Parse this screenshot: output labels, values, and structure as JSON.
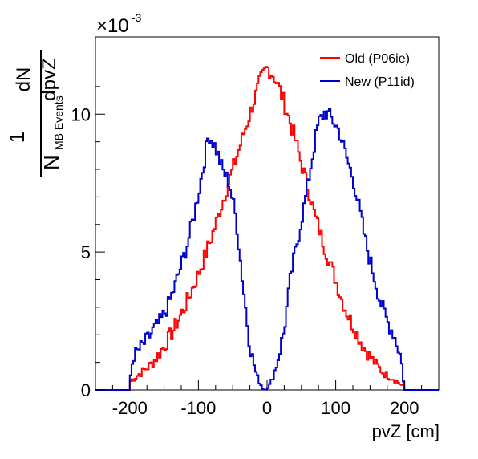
{
  "chart_data": {
    "type": "line",
    "xlabel": "pvZ [cm]",
    "ylabel": {
      "fraction_one": "1",
      "n_main": "N",
      "n_subscript": "MB Events",
      "d_numerator": "dN",
      "d_denominator": "dpvZ"
    },
    "y_multiplier_label": {
      "base": "×10",
      "exponent": "-3"
    },
    "xlim": [
      -250,
      250
    ],
    "ylim": [
      0,
      0.0128
    ],
    "x_ticks": [
      {
        "value": -200,
        "label": "-200"
      },
      {
        "value": -100,
        "label": "-100"
      },
      {
        "value": 0,
        "label": "0"
      },
      {
        "value": 100,
        "label": "100"
      },
      {
        "value": 200,
        "label": "200"
      }
    ],
    "y_ticks": [
      {
        "value": 0,
        "label": "0"
      },
      {
        "value": 0.005,
        "label": "5"
      },
      {
        "value": 0.01,
        "label": "10"
      }
    ],
    "legend_position": "top-right",
    "grid": false,
    "series": [
      {
        "name": "Old (P06ie)",
        "color": "#ff0000",
        "points": [
          [
            -200,
            0.0003
          ],
          [
            -185,
            0.0006
          ],
          [
            -170,
            0.0009
          ],
          [
            -160,
            0.0012
          ],
          [
            -150,
            0.0016
          ],
          [
            -140,
            0.002
          ],
          [
            -130,
            0.0025
          ],
          [
            -120,
            0.003
          ],
          [
            -110,
            0.0036
          ],
          [
            -100,
            0.0042
          ],
          [
            -90,
            0.0049
          ],
          [
            -80,
            0.0056
          ],
          [
            -70,
            0.0064
          ],
          [
            -60,
            0.0072
          ],
          [
            -50,
            0.008
          ],
          [
            -40,
            0.0088
          ],
          [
            -30,
            0.0096
          ],
          [
            -20,
            0.0104
          ],
          [
            -10,
            0.0112
          ],
          [
            0,
            0.0117
          ],
          [
            10,
            0.0114
          ],
          [
            20,
            0.0108
          ],
          [
            30,
            0.01
          ],
          [
            40,
            0.0092
          ],
          [
            50,
            0.0082
          ],
          [
            60,
            0.0073
          ],
          [
            70,
            0.0063
          ],
          [
            80,
            0.0055
          ],
          [
            90,
            0.0047
          ],
          [
            100,
            0.004
          ],
          [
            110,
            0.0032
          ],
          [
            120,
            0.0026
          ],
          [
            130,
            0.0021
          ],
          [
            140,
            0.0016
          ],
          [
            150,
            0.0012
          ],
          [
            160,
            0.0009
          ],
          [
            170,
            0.0006
          ],
          [
            185,
            0.0004
          ],
          [
            195,
            0.0002
          ],
          [
            200,
            0.0001
          ]
        ]
      },
      {
        "name": "New (P11id)",
        "color": "#0000cc",
        "points": [
          [
            -200,
            0.0003
          ],
          [
            -195,
            0.0012
          ],
          [
            -185,
            0.0015
          ],
          [
            -175,
            0.0018
          ],
          [
            -165,
            0.0022
          ],
          [
            -155,
            0.0025
          ],
          [
            -145,
            0.003
          ],
          [
            -135,
            0.0037
          ],
          [
            -125,
            0.0045
          ],
          [
            -115,
            0.0054
          ],
          [
            -105,
            0.0065
          ],
          [
            -95,
            0.0078
          ],
          [
            -85,
            0.0093
          ],
          [
            -75,
            0.0088
          ],
          [
            -65,
            0.008
          ],
          [
            -55,
            0.0075
          ],
          [
            -45,
            0.0062
          ],
          [
            -35,
            0.0038
          ],
          [
            -25,
            0.0016
          ],
          [
            -15,
            0.0005
          ],
          [
            -5,
            0.0
          ],
          [
            5,
            0.0002
          ],
          [
            15,
            0.001
          ],
          [
            25,
            0.0022
          ],
          [
            35,
            0.0042
          ],
          [
            45,
            0.0055
          ],
          [
            55,
            0.0068
          ],
          [
            65,
            0.0083
          ],
          [
            75,
            0.0097
          ],
          [
            85,
            0.0101
          ],
          [
            95,
            0.0098
          ],
          [
            105,
            0.0094
          ],
          [
            115,
            0.0085
          ],
          [
            125,
            0.0077
          ],
          [
            135,
            0.0065
          ],
          [
            145,
            0.0052
          ],
          [
            155,
            0.0042
          ],
          [
            165,
            0.0032
          ],
          [
            175,
            0.0025
          ],
          [
            185,
            0.002
          ],
          [
            195,
            0.0012
          ],
          [
            200,
            0.0001
          ]
        ]
      }
    ]
  }
}
